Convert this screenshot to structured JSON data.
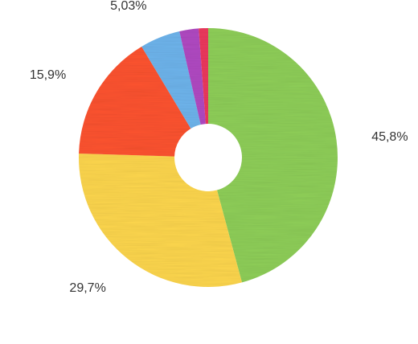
{
  "chart_data": {
    "type": "pie",
    "variant": "donut",
    "title": "",
    "legend": "none",
    "slices": [
      {
        "label": "45,8%",
        "value": 45.8,
        "color": "#90d05a"
      },
      {
        "label": "29,7%",
        "value": 29.7,
        "color": "#ffd84f"
      },
      {
        "label": "15,9%",
        "value": 15.9,
        "color": "#ff5432"
      },
      {
        "label": "5,03%",
        "value": 5.03,
        "color": "#6fb6ee"
      },
      {
        "label": "",
        "value": 2.4,
        "color": "#b24cc4"
      },
      {
        "label": "",
        "value": 1.17,
        "color": "#ee3a5e"
      }
    ]
  }
}
